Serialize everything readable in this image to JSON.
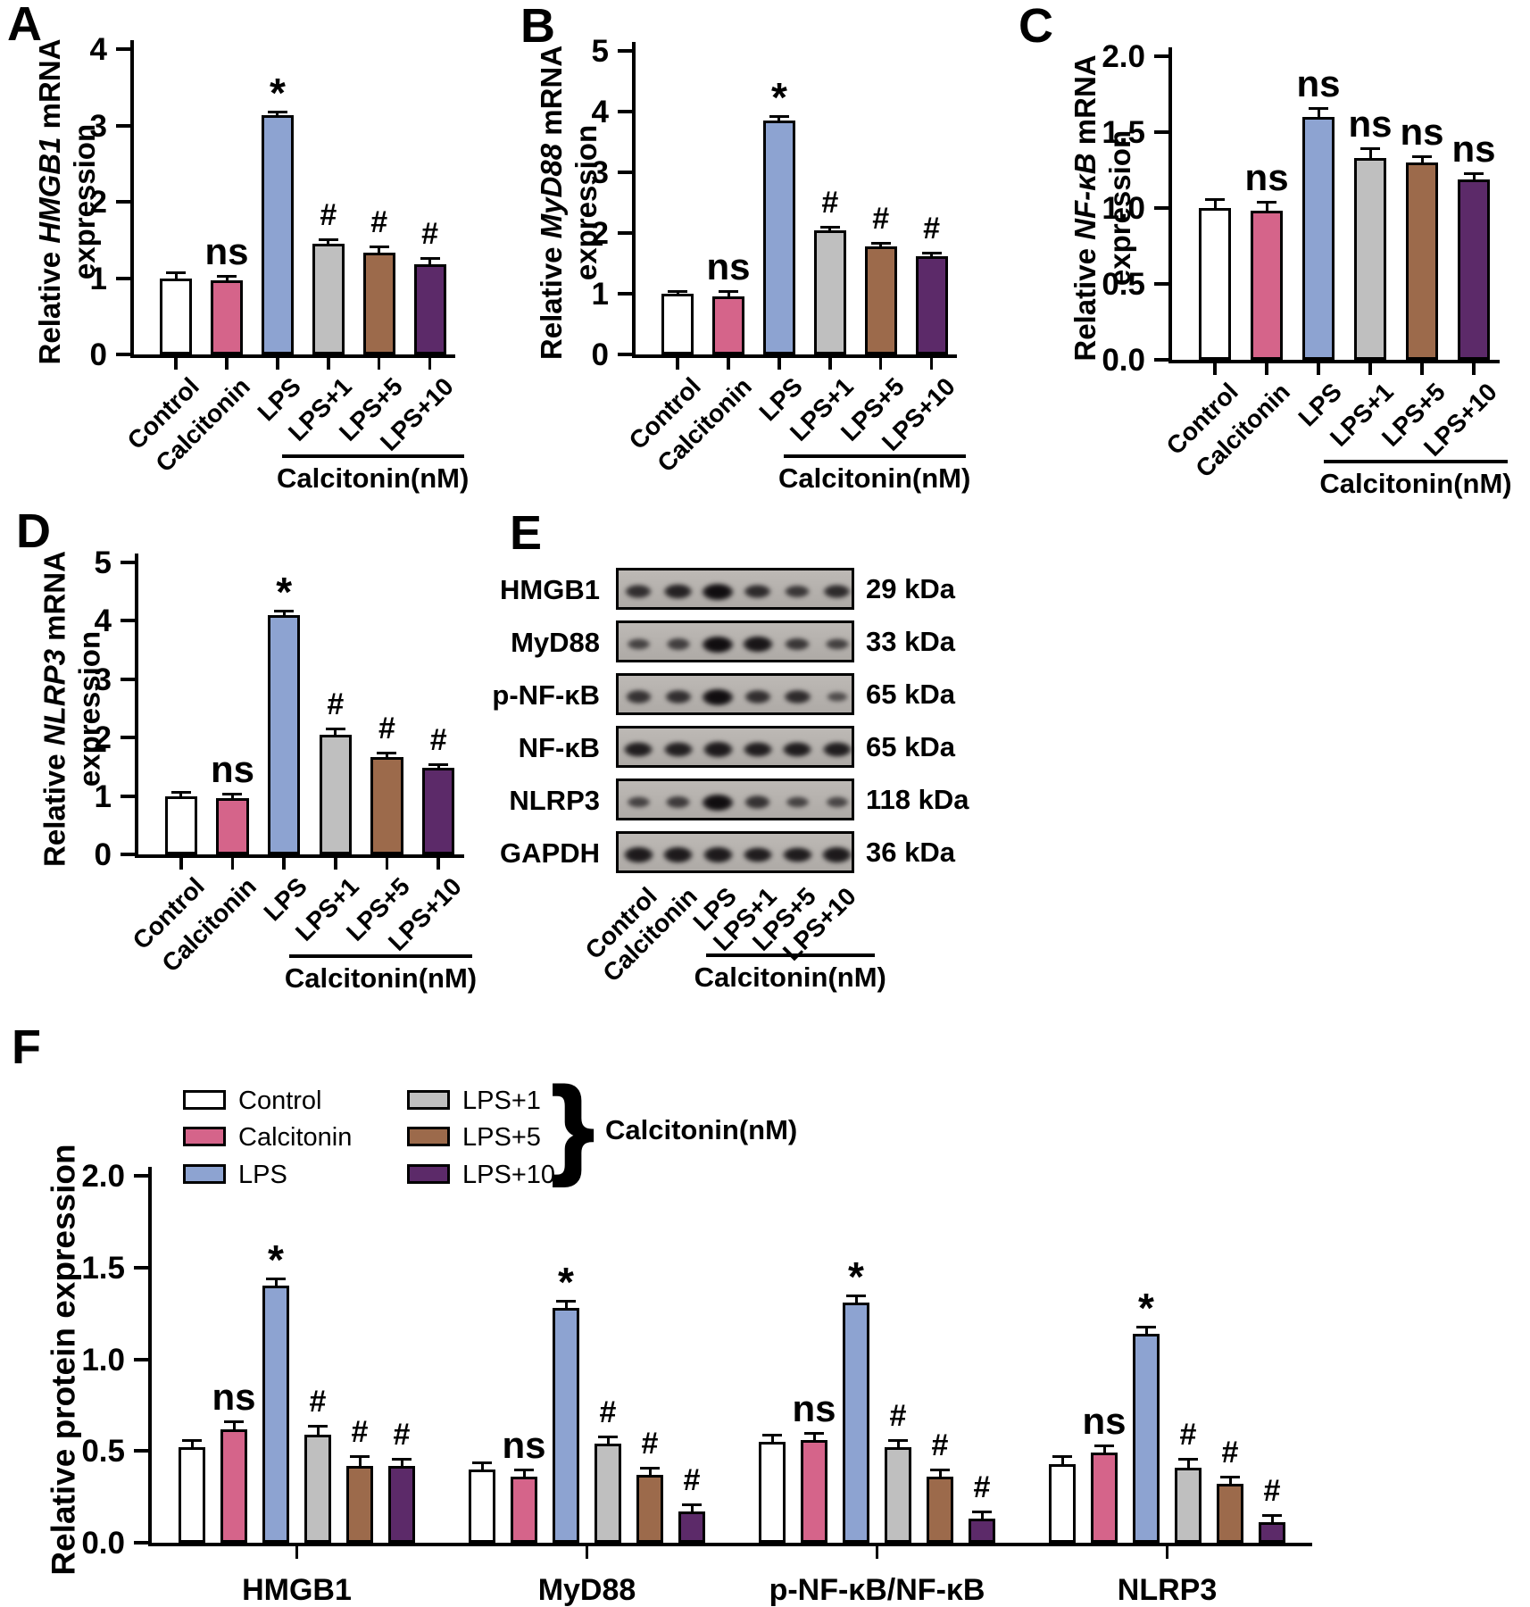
{
  "figure": {
    "panels": {
      "A": "A",
      "B": "B",
      "C": "C",
      "D": "D",
      "E": "E",
      "F": "F"
    }
  },
  "categories": [
    "Control",
    "Calcitonin",
    "LPS",
    "LPS+1",
    "LPS+5",
    "LPS+10"
  ],
  "category_colors": [
    "#FFFFFF",
    "#D5648A",
    "#8DA3D1",
    "#BFBFBF",
    "#9C6A4B",
    "#5C2A69"
  ],
  "chart_data": [
    {
      "panel": "A",
      "type": "bar",
      "ylabel": {
        "prefix": "Relative ",
        "gene": "HMGB1",
        "mid": " mRNA",
        "line2": "expression"
      },
      "categories": [
        "Control",
        "Calcitonin",
        "LPS",
        "LPS+1",
        "LPS+5",
        "LPS+10"
      ],
      "values": [
        1.0,
        0.97,
        3.13,
        1.45,
        1.33,
        1.18
      ],
      "errors": [
        0.05,
        0.04,
        0.03,
        0.03,
        0.06,
        0.06
      ],
      "sig": [
        "",
        "ns",
        "*",
        "#",
        "#",
        "#"
      ],
      "ylim": [
        0,
        4
      ],
      "yticks": [
        "0",
        "1",
        "2",
        "3",
        "4"
      ],
      "bracket_label": "Calcitonin(nM)"
    },
    {
      "panel": "B",
      "type": "bar",
      "ylabel": {
        "prefix": "Relative ",
        "gene": "MyD88",
        "mid": " mRNA",
        "line2": "expression"
      },
      "categories": [
        "Control",
        "Calcitonin",
        "LPS",
        "LPS+1",
        "LPS+5",
        "LPS+10"
      ],
      "values": [
        1.0,
        0.96,
        3.85,
        2.05,
        1.78,
        1.62
      ],
      "errors": [
        0.02,
        0.05,
        0.04,
        0.03,
        0.03,
        0.03
      ],
      "sig": [
        "",
        "ns",
        "*",
        "#",
        "#",
        "#"
      ],
      "ylim": [
        0,
        5
      ],
      "yticks": [
        "0",
        "1",
        "2",
        "3",
        "4",
        "5"
      ],
      "bracket_label": "Calcitonin(nM)"
    },
    {
      "panel": "C",
      "type": "bar",
      "ylabel": {
        "prefix": "Relative ",
        "gene": "NF-κB",
        "mid": " mRNA",
        "line2": "expression"
      },
      "categories": [
        "Control",
        "Calcitonin",
        "LPS",
        "LPS+1",
        "LPS+5",
        "LPS+10"
      ],
      "values": [
        1.0,
        0.98,
        1.6,
        1.33,
        1.3,
        1.19
      ],
      "errors": [
        0.05,
        0.05,
        0.05,
        0.05,
        0.03,
        0.03
      ],
      "sig": [
        "",
        "ns",
        "ns",
        "ns",
        "ns",
        "ns"
      ],
      "ylim": [
        0,
        2
      ],
      "yticks": [
        "0.0",
        "0.5",
        "1.0",
        "1.5",
        "2.0"
      ],
      "bracket_label": "Calcitonin(nM)"
    },
    {
      "panel": "D",
      "type": "bar",
      "ylabel": {
        "prefix": "Relative ",
        "gene": "NLRP3",
        "mid": " mRNA",
        "line2": "expression"
      },
      "categories": [
        "Control",
        "Calcitonin",
        "LPS",
        "LPS+1",
        "LPS+5",
        "LPS+10"
      ],
      "values": [
        1.0,
        0.96,
        4.1,
        2.05,
        1.67,
        1.48
      ],
      "errors": [
        0.04,
        0.05,
        0.04,
        0.07,
        0.05,
        0.04
      ],
      "sig": [
        "",
        "ns",
        "*",
        "#",
        "#",
        "#"
      ],
      "ylim": [
        0,
        5
      ],
      "yticks": [
        "0",
        "1",
        "2",
        "3",
        "4",
        "5"
      ],
      "bracket_label": "Calcitonin(nM)"
    },
    {
      "panel": "F",
      "type": "grouped_bar",
      "ylabel_text": "Relative protein expression",
      "group_labels": [
        "HMGB1",
        "MyD88",
        "p-NF-κB/NF-κB",
        "NLRP3"
      ],
      "series_labels": [
        "Control",
        "Calcitonin",
        "LPS",
        "LPS+1",
        "LPS+5",
        "LPS+10"
      ],
      "series": [
        {
          "group": "HMGB1",
          "values": [
            0.52,
            0.62,
            1.4,
            0.59,
            0.42,
            0.42
          ],
          "errors": [
            0.03,
            0.03,
            0.03,
            0.04,
            0.04,
            0.03
          ],
          "sig": [
            "",
            "ns",
            "*",
            "#",
            "#",
            "#"
          ]
        },
        {
          "group": "MyD88",
          "values": [
            0.4,
            0.36,
            1.28,
            0.54,
            0.37,
            0.17
          ],
          "errors": [
            0.03,
            0.03,
            0.03,
            0.03,
            0.03,
            0.03
          ],
          "sig": [
            "",
            "ns",
            "*",
            "#",
            "#",
            "#"
          ]
        },
        {
          "group": "p-NF-κB/NF-κB",
          "values": [
            0.55,
            0.56,
            1.31,
            0.52,
            0.36,
            0.13
          ],
          "errors": [
            0.03,
            0.03,
            0.03,
            0.03,
            0.03,
            0.03
          ],
          "sig": [
            "",
            "ns",
            "*",
            "#",
            "#",
            "#"
          ]
        },
        {
          "group": "NLRP3",
          "values": [
            0.43,
            0.49,
            1.14,
            0.41,
            0.32,
            0.11
          ],
          "errors": [
            0.03,
            0.03,
            0.03,
            0.04,
            0.03,
            0.03
          ],
          "sig": [
            "",
            "ns",
            "*",
            "#",
            "#",
            "#"
          ]
        }
      ],
      "ylim": [
        0,
        2
      ],
      "yticks": [
        "0.0",
        "0.5",
        "1.0",
        "1.5",
        "2.0"
      ]
    }
  ],
  "western_blot": {
    "rows": [
      {
        "label": "HMGB1",
        "kda": "29 kDa",
        "bands": [
          0.6,
          0.75,
          1.0,
          0.65,
          0.5,
          0.65
        ]
      },
      {
        "label": "MyD88",
        "kda": "33 kDa",
        "bands": [
          0.35,
          0.4,
          1.0,
          0.9,
          0.5,
          0.38
        ]
      },
      {
        "label": "p-NF-κB",
        "kda": "65 kDa",
        "bands": [
          0.55,
          0.6,
          1.0,
          0.6,
          0.65,
          0.22
        ]
      },
      {
        "label": "NF-κB",
        "kda": "65 kDa",
        "bands": [
          0.8,
          0.78,
          0.85,
          0.8,
          0.82,
          0.8
        ]
      },
      {
        "label": "NLRP3",
        "kda": "118 kDa",
        "bands": [
          0.35,
          0.45,
          1.0,
          0.55,
          0.35,
          0.3
        ]
      },
      {
        "label": "GAPDH",
        "kda": "36 kDa",
        "bands": [
          0.85,
          0.85,
          0.85,
          0.82,
          0.83,
          0.85
        ]
      }
    ],
    "lane_labels": [
      "Control",
      "Calcitonin",
      "LPS",
      "LPS+1",
      "LPS+5",
      "LPS+10"
    ],
    "bracket_label": "Calcitonin(nM)"
  },
  "legend": {
    "items": [
      {
        "label": "Control",
        "color": "#FFFFFF"
      },
      {
        "label": "Calcitonin",
        "color": "#D5648A"
      },
      {
        "label": "LPS",
        "color": "#8DA3D1"
      },
      {
        "label": "LPS+1",
        "color": "#BFBFBF"
      },
      {
        "label": "LPS+5",
        "color": "#9C6A4B"
      },
      {
        "label": "LPS+10",
        "color": "#5C2A69"
      }
    ],
    "brace_label": "Calcitonin(nM)"
  }
}
